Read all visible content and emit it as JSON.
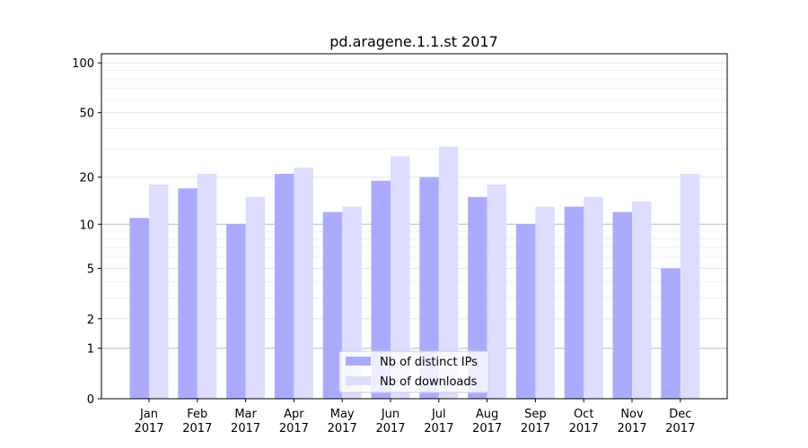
{
  "chart_data": {
    "type": "bar",
    "title": "pd.aragene.1.1.st 2017",
    "xlabel": "",
    "ylabel": "",
    "yscale": "symlog (log10(1+y))",
    "ylim": [
      0,
      120
    ],
    "yticks": [
      0,
      1,
      2,
      5,
      10,
      20,
      50,
      100
    ],
    "grid": true,
    "legend_position": "bottom-center",
    "categories": [
      "Jan\n2017",
      "Feb\n2017",
      "Mar\n2017",
      "Apr\n2017",
      "May\n2017",
      "Jun\n2017",
      "Jul\n2017",
      "Aug\n2017",
      "Sep\n2017",
      "Oct\n2017",
      "Nov\n2017",
      "Dec\n2017"
    ],
    "series": [
      {
        "name": "Nb of distinct IPs",
        "color": "#aaaaff",
        "values": [
          11,
          17,
          10,
          21,
          12,
          19,
          20,
          15,
          10,
          13,
          12,
          5
        ]
      },
      {
        "name": "Nb of downloads",
        "color": "#ddddff",
        "values": [
          18,
          21,
          15,
          23,
          13,
          27,
          31,
          18,
          13,
          15,
          14,
          21
        ]
      }
    ]
  }
}
